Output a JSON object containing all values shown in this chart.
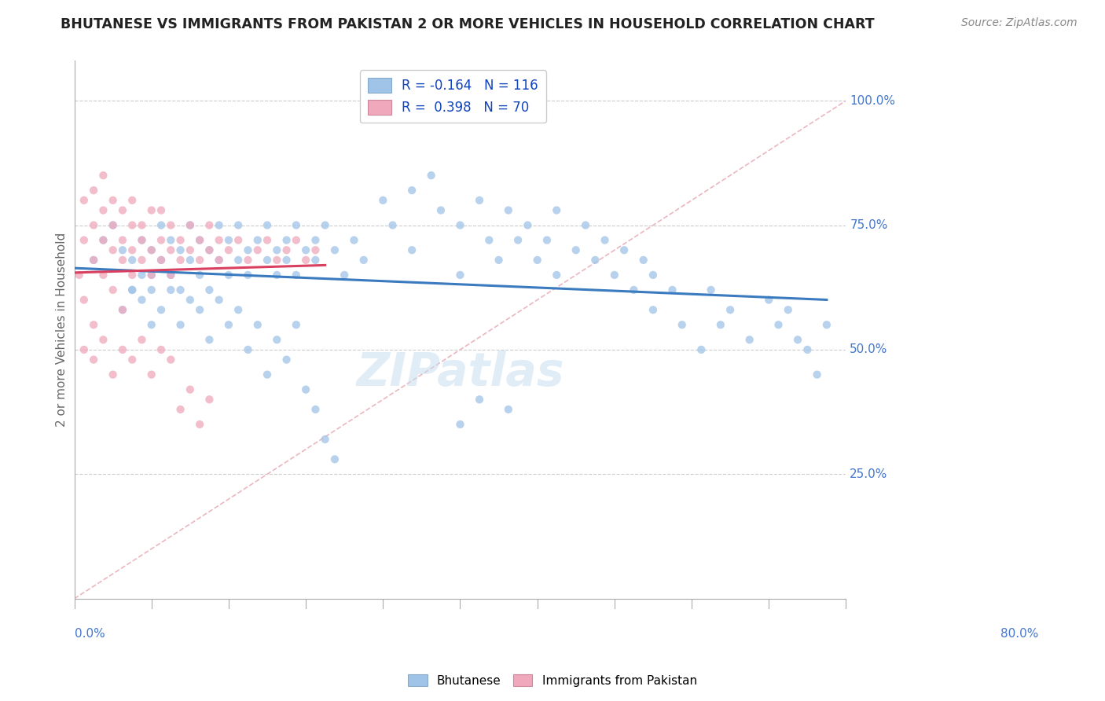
{
  "title": "BHUTANESE VS IMMIGRANTS FROM PAKISTAN 2 OR MORE VEHICLES IN HOUSEHOLD CORRELATION CHART",
  "source_text": "Source: ZipAtlas.com",
  "ylabel": "2 or more Vehicles in Household",
  "right_yticks": [
    "25.0%",
    "50.0%",
    "75.0%",
    "100.0%"
  ],
  "right_ytick_vals": [
    0.25,
    0.5,
    0.75,
    1.0
  ],
  "xlim": [
    0.0,
    0.8
  ],
  "ylim": [
    0.0,
    1.08
  ],
  "watermark": "ZIPatlas",
  "blue_color": "#a0c4e8",
  "pink_color": "#f0a8bc",
  "blue_line_color": "#3a7bbf",
  "pink_line_color": "#d94060",
  "diagonal_color": "#e8b0b8",
  "title_color": "#222222",
  "source_color": "#888888",
  "right_axis_color": "#4477cc",
  "bottom_label_color": "#4477cc",
  "legend_blue_r": "R = -0.164",
  "legend_blue_n": "N = 116",
  "legend_pink_r": "R =  0.398",
  "legend_pink_n": "N = 70"
}
